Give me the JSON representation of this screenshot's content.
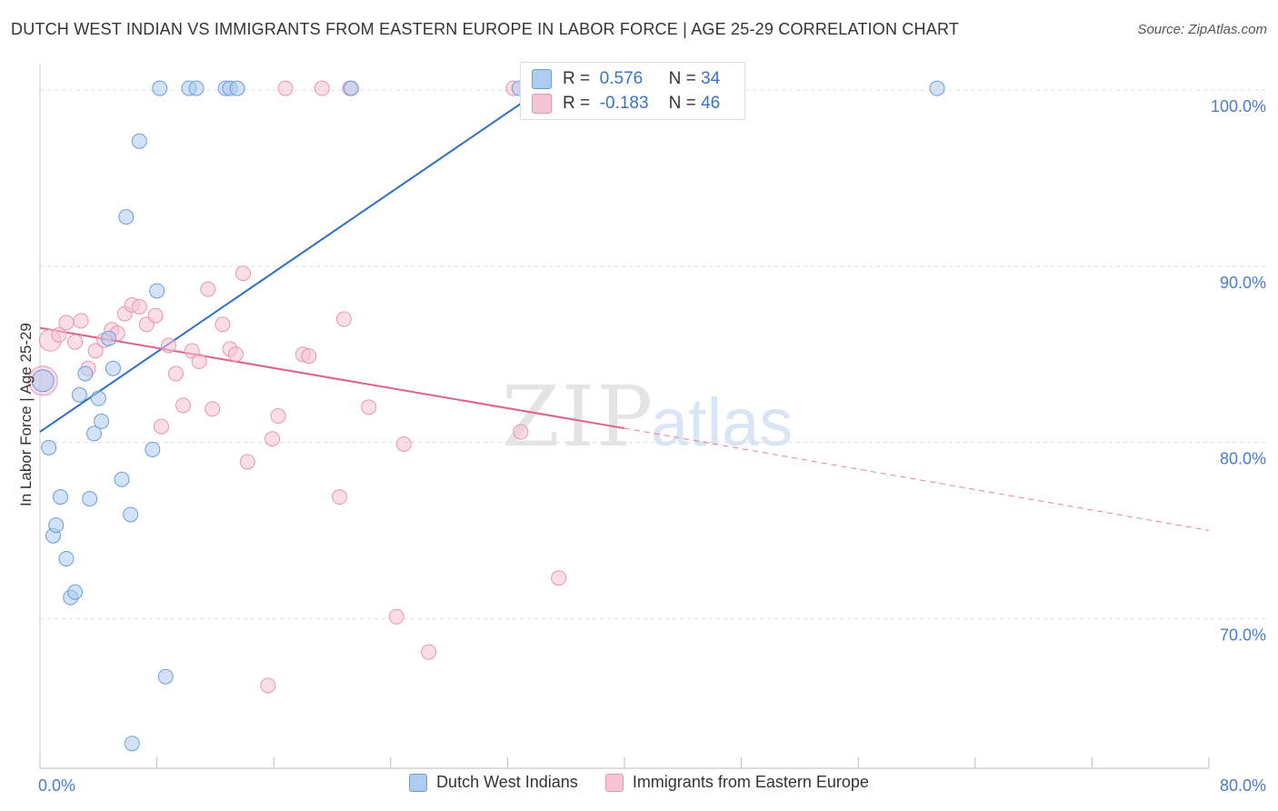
{
  "title": "DUTCH WEST INDIAN VS IMMIGRANTS FROM EASTERN EUROPE IN LABOR FORCE | AGE 25-29 CORRELATION CHART",
  "source": "Source: ZipAtlas.com",
  "watermark": {
    "zip": "ZIP",
    "atlas": "atlas"
  },
  "colors": {
    "blue_fill": "#aecbf0",
    "blue_stroke": "#6a9fdc",
    "blue_line": "#2f6fc6",
    "pink_fill": "#f6c3d2",
    "pink_stroke": "#e896b0",
    "pink_line": "#e0608c",
    "tick_text": "#4a7cc9",
    "grid": "#dddddd"
  },
  "stats": {
    "rows": [
      {
        "r_label": "R =",
        "r_value": "0.576",
        "n_label": "N =",
        "n_value": "34"
      },
      {
        "r_label": "R =",
        "r_value": "-0.183",
        "n_label": "N =",
        "n_value": "46"
      }
    ]
  },
  "chart_data": {
    "type": "scatter",
    "title": "DUTCH WEST INDIAN VS IMMIGRANTS FROM EASTERN EUROPE IN LABOR FORCE | AGE 25-29 CORRELATION CHART",
    "xlabel": "",
    "ylabel": "In Labor Force | Age 25-29",
    "xlim": [
      0,
      80
    ],
    "ylim": [
      61.5,
      101.5
    ],
    "x_tick_labels": [
      {
        "value": 0,
        "label": "0.0%"
      },
      {
        "value": 80,
        "label": "80.0%"
      }
    ],
    "y_tick_labels": [
      {
        "value": 100,
        "label": "100.0%"
      },
      {
        "value": 90,
        "label": "90.0%"
      },
      {
        "value": 80,
        "label": "80.0%"
      },
      {
        "value": 70,
        "label": "70.0%"
      }
    ],
    "series": [
      {
        "name": "Dutch West Indians",
        "color": "#aecbf0",
        "trend": {
          "x0": 0,
          "y0": 80.6,
          "x1": 35.5,
          "y1": 100.7,
          "dashed_to": null
        },
        "points": [
          {
            "x": 0.2,
            "y": 83.5,
            "s": "l"
          },
          {
            "x": 0.6,
            "y": 79.7
          },
          {
            "x": 0.9,
            "y": 74.7
          },
          {
            "x": 1.1,
            "y": 75.3
          },
          {
            "x": 1.4,
            "y": 76.9
          },
          {
            "x": 1.8,
            "y": 73.4
          },
          {
            "x": 2.1,
            "y": 71.2
          },
          {
            "x": 2.4,
            "y": 71.5
          },
          {
            "x": 2.7,
            "y": 82.7
          },
          {
            "x": 3.1,
            "y": 83.9
          },
          {
            "x": 3.4,
            "y": 76.8
          },
          {
            "x": 3.7,
            "y": 80.5
          },
          {
            "x": 4.0,
            "y": 82.5
          },
          {
            "x": 4.2,
            "y": 81.2
          },
          {
            "x": 4.7,
            "y": 85.9
          },
          {
            "x": 5.0,
            "y": 84.2
          },
          {
            "x": 5.6,
            "y": 77.9
          },
          {
            "x": 5.9,
            "y": 92.8
          },
          {
            "x": 6.2,
            "y": 75.9
          },
          {
            "x": 6.8,
            "y": 97.1
          },
          {
            "x": 6.3,
            "y": 62.9
          },
          {
            "x": 7.7,
            "y": 79.6
          },
          {
            "x": 8.0,
            "y": 88.6
          },
          {
            "x": 8.2,
            "y": 100.1
          },
          {
            "x": 8.6,
            "y": 66.7
          },
          {
            "x": 10.2,
            "y": 100.1
          },
          {
            "x": 10.7,
            "y": 100.1
          },
          {
            "x": 12.7,
            "y": 100.1
          },
          {
            "x": 13.0,
            "y": 100.1
          },
          {
            "x": 13.5,
            "y": 100.1
          },
          {
            "x": 21.3,
            "y": 100.1
          },
          {
            "x": 32.8,
            "y": 100.1
          },
          {
            "x": 34.6,
            "y": 100.1
          },
          {
            "x": 61.4,
            "y": 100.1
          }
        ]
      },
      {
        "name": "Immigrants from Eastern Europe",
        "color": "#f6c3d2",
        "trend": {
          "x0": 0,
          "y0": 86.5,
          "x1": 40,
          "y1": 80.8,
          "dashed_to": {
            "x": 80,
            "y": 75.0
          }
        },
        "points": [
          {
            "x": 0.2,
            "y": 83.5,
            "s": "xl"
          },
          {
            "x": 0.7,
            "y": 85.8,
            "s": "l"
          },
          {
            "x": 1.3,
            "y": 86.1
          },
          {
            "x": 1.8,
            "y": 86.8
          },
          {
            "x": 2.4,
            "y": 85.7
          },
          {
            "x": 2.8,
            "y": 86.9
          },
          {
            "x": 3.3,
            "y": 84.2
          },
          {
            "x": 3.8,
            "y": 85.2
          },
          {
            "x": 4.4,
            "y": 85.8
          },
          {
            "x": 4.9,
            "y": 86.4
          },
          {
            "x": 5.3,
            "y": 86.2
          },
          {
            "x": 5.8,
            "y": 87.3
          },
          {
            "x": 6.3,
            "y": 87.8
          },
          {
            "x": 6.8,
            "y": 87.7
          },
          {
            "x": 7.3,
            "y": 86.7
          },
          {
            "x": 7.9,
            "y": 87.2
          },
          {
            "x": 8.3,
            "y": 80.9
          },
          {
            "x": 8.8,
            "y": 85.5
          },
          {
            "x": 9.3,
            "y": 83.9
          },
          {
            "x": 9.8,
            "y": 82.1
          },
          {
            "x": 10.4,
            "y": 85.2
          },
          {
            "x": 10.9,
            "y": 84.6
          },
          {
            "x": 11.5,
            "y": 88.7
          },
          {
            "x": 11.8,
            "y": 81.9
          },
          {
            "x": 12.5,
            "y": 86.7
          },
          {
            "x": 13.0,
            "y": 85.3
          },
          {
            "x": 13.4,
            "y": 85.0
          },
          {
            "x": 13.9,
            "y": 89.6
          },
          {
            "x": 14.2,
            "y": 78.9
          },
          {
            "x": 15.6,
            "y": 66.2
          },
          {
            "x": 15.9,
            "y": 80.2
          },
          {
            "x": 16.3,
            "y": 81.5
          },
          {
            "x": 16.8,
            "y": 100.1
          },
          {
            "x": 18.0,
            "y": 85.0
          },
          {
            "x": 18.4,
            "y": 84.9
          },
          {
            "x": 19.3,
            "y": 100.1
          },
          {
            "x": 20.5,
            "y": 76.9
          },
          {
            "x": 20.8,
            "y": 87.0
          },
          {
            "x": 21.2,
            "y": 100.1
          },
          {
            "x": 22.5,
            "y": 82.0
          },
          {
            "x": 24.4,
            "y": 70.1
          },
          {
            "x": 24.9,
            "y": 79.9
          },
          {
            "x": 26.6,
            "y": 68.1
          },
          {
            "x": 32.4,
            "y": 100.1
          },
          {
            "x": 32.9,
            "y": 80.6
          },
          {
            "x": 35.5,
            "y": 72.3
          }
        ]
      }
    ],
    "legend": [
      "Dutch West Indians",
      "Immigrants from Eastern Europe"
    ],
    "legend_position": "bottom-center",
    "grid": true
  }
}
